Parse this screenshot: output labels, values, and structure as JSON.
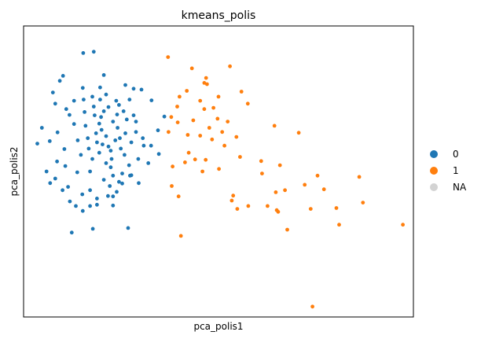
{
  "chart_data": {
    "type": "scatter",
    "title": "kmeans_polis",
    "xlabel": "pca_polis1",
    "ylabel": "pca_polis2",
    "xlim": [
      -2.0,
      6.5
    ],
    "ylim": [
      -4.0,
      3.0
    ],
    "grid": false,
    "legend": {
      "placement": "right",
      "entries": [
        {
          "label": "0",
          "color": "#1f77b4"
        },
        {
          "label": "1",
          "color": "#ff7f0e"
        },
        {
          "label": "NA",
          "color": "#d3d3d3"
        }
      ]
    },
    "series": [
      {
        "name": "0",
        "color": "#1f77b4",
        "points": [
          [
            -0.7,
            2.35
          ],
          [
            -0.47,
            2.38
          ],
          [
            -1.36,
            1.4
          ],
          [
            -1.21,
            1.68
          ],
          [
            -1.14,
            1.8
          ],
          [
            -1.31,
            1.13
          ],
          [
            -1.43,
            0.23
          ],
          [
            -1.6,
            0.55
          ],
          [
            -1.7,
            0.17
          ],
          [
            -1.5,
            -0.5
          ],
          [
            -1.42,
            -0.78
          ],
          [
            -1.31,
            -0.67
          ],
          [
            -1.15,
            -0.95
          ],
          [
            -1.03,
            -0.87
          ],
          [
            -0.99,
            -1.22
          ],
          [
            -0.86,
            -1.33
          ],
          [
            -0.71,
            -1.45
          ],
          [
            -0.55,
            -1.33
          ],
          [
            -0.4,
            -1.3
          ],
          [
            -0.05,
            -1.32
          ],
          [
            -0.95,
            -1.97
          ],
          [
            -0.49,
            -1.88
          ],
          [
            0.28,
            -1.86
          ],
          [
            -0.71,
            1.51
          ],
          [
            -0.33,
            1.52
          ],
          [
            0.22,
            1.58
          ],
          [
            0.4,
            1.49
          ],
          [
            0.57,
            1.47
          ],
          [
            -0.25,
            1.82
          ],
          [
            -0.69,
            1.23
          ],
          [
            -0.33,
            1.23
          ],
          [
            0.31,
            1.23
          ],
          [
            0.79,
            1.21
          ],
          [
            0.08,
            1.1
          ],
          [
            -0.47,
            1.06
          ],
          [
            -1.07,
            1.0
          ],
          [
            0.93,
            0.49
          ],
          [
            1.07,
            0.82
          ],
          [
            0.78,
            0.12
          ],
          [
            0.95,
            -0.08
          ],
          [
            0.72,
            -0.3
          ],
          [
            0.51,
            -0.78
          ],
          [
            0.35,
            -0.59
          ],
          [
            0.15,
            -0.79
          ],
          [
            0.03,
            -0.99
          ],
          [
            -0.16,
            -1.09
          ],
          [
            -1.26,
            0.44
          ],
          [
            -1.11,
            0.04
          ],
          [
            -1.27,
            -0.26
          ],
          [
            -1.09,
            -0.37
          ],
          [
            -0.83,
            -0.52
          ],
          [
            -0.72,
            -1.05
          ],
          [
            -0.55,
            -0.95
          ],
          [
            -0.9,
            0.64
          ],
          [
            -1.0,
            0.86
          ],
          [
            -0.67,
            0.93
          ],
          [
            -0.5,
            1.3
          ],
          [
            -0.2,
            1.35
          ],
          [
            0.02,
            1.2
          ],
          [
            -0.9,
            1.2
          ],
          [
            0.18,
            0.95
          ],
          [
            0.45,
            0.7
          ],
          [
            0.6,
            0.3
          ],
          [
            -0.05,
            -1.1
          ],
          [
            -0.4,
            -1.15
          ],
          [
            -0.25,
            0.95
          ],
          [
            -0.15,
            1.05
          ],
          [
            -0.31,
            0.81
          ],
          [
            0.04,
            0.87
          ],
          [
            -0.35,
            0.65
          ],
          [
            -0.05,
            0.7
          ],
          [
            -0.4,
            0.2
          ],
          [
            -0.1,
            0.0
          ],
          [
            -0.2,
            -0.3
          ],
          [
            -0.1,
            -0.4
          ],
          [
            0.1,
            0.3
          ],
          [
            0.2,
            -0.1
          ],
          [
            -0.3,
            0.5
          ],
          [
            -0.05,
            -0.6
          ],
          [
            0.05,
            0.55
          ],
          [
            -0.25,
            -0.7
          ],
          [
            0.35,
            0.2
          ],
          [
            0.3,
            -0.35
          ],
          [
            -0.5,
            -0.2
          ],
          [
            -0.6,
            0.3
          ],
          [
            -0.65,
            0.6
          ],
          [
            -0.75,
            -0.1
          ],
          [
            -0.55,
            -0.5
          ],
          [
            0.45,
            0.45
          ],
          [
            0.5,
            -0.2
          ],
          [
            -0.45,
            0.85
          ],
          [
            0.25,
            0.75
          ],
          [
            -0.2,
            0.35
          ],
          [
            -0.35,
            -0.05
          ],
          [
            0.15,
            -0.55
          ],
          [
            0.0,
            0.25
          ],
          [
            -0.15,
            0.1
          ],
          [
            -0.28,
            0.15
          ],
          [
            0.12,
            0.05
          ],
          [
            -0.08,
            -0.2
          ],
          [
            0.22,
            0.42
          ],
          [
            -0.42,
            0.42
          ],
          [
            0.32,
            -0.6
          ],
          [
            -0.12,
            -0.85
          ],
          [
            0.4,
            0.85
          ],
          [
            -0.58,
            0.05
          ],
          [
            0.62,
            0.12
          ],
          [
            -0.82,
            0.25
          ],
          [
            0.08,
            -0.75
          ]
        ]
      },
      {
        "name": "1",
        "color": "#ff7f0e",
        "points": [
          [
            1.15,
            2.25
          ],
          [
            1.67,
            1.98
          ],
          [
            1.94,
            1.63
          ],
          [
            2.5,
            2.03
          ],
          [
            2.75,
            1.42
          ],
          [
            2.89,
            1.13
          ],
          [
            1.35,
            1.06
          ],
          [
            1.56,
            1.44
          ],
          [
            1.94,
            1.0
          ],
          [
            2.14,
            1.03
          ],
          [
            1.7,
            0.73
          ],
          [
            2.23,
            0.77
          ],
          [
            3.47,
            0.6
          ],
          [
            4.0,
            0.43
          ],
          [
            2.33,
            0.45
          ],
          [
            2.64,
            0.33
          ],
          [
            2.38,
            0.12
          ],
          [
            2.11,
            0.27
          ],
          [
            1.85,
            0.36
          ],
          [
            1.58,
            0.38
          ],
          [
            1.16,
            0.45
          ],
          [
            1.22,
            0.81
          ],
          [
            1.36,
            0.68
          ],
          [
            2.72,
            -0.15
          ],
          [
            3.18,
            -0.25
          ],
          [
            3.59,
            -0.35
          ],
          [
            3.2,
            -0.55
          ],
          [
            2.26,
            -0.44
          ],
          [
            1.97,
            -0.22
          ],
          [
            1.74,
            -0.21
          ],
          [
            1.52,
            -0.28
          ],
          [
            1.25,
            -0.38
          ],
          [
            4.41,
            -0.6
          ],
          [
            4.13,
            -0.82
          ],
          [
            4.55,
            -0.93
          ],
          [
            3.7,
            -0.95
          ],
          [
            3.5,
            -1.0
          ],
          [
            2.57,
            -1.08
          ],
          [
            1.38,
            -1.1
          ],
          [
            1.23,
            -0.85
          ],
          [
            5.32,
            -0.63
          ],
          [
            5.4,
            -1.25
          ],
          [
            4.26,
            -1.4
          ],
          [
            3.32,
            -1.33
          ],
          [
            2.9,
            -1.33
          ],
          [
            2.66,
            -1.4
          ],
          [
            2.54,
            -1.2
          ],
          [
            3.55,
            -1.47
          ],
          [
            3.52,
            -1.43
          ],
          [
            4.82,
            -1.38
          ],
          [
            3.75,
            -1.9
          ],
          [
            4.88,
            -1.78
          ],
          [
            6.27,
            -1.78
          ],
          [
            1.43,
            -2.05
          ],
          [
            4.3,
            -3.75
          ],
          [
            1.98,
            1.75
          ],
          [
            2.25,
            1.3
          ],
          [
            2.05,
            0.55
          ],
          [
            1.4,
            1.3
          ],
          [
            1.85,
            1.2
          ],
          [
            1.6,
            -0.05
          ],
          [
            2.45,
            0.7
          ],
          [
            1.9,
            -0.5
          ],
          [
            2.0,
            1.6
          ]
        ]
      }
    ]
  }
}
